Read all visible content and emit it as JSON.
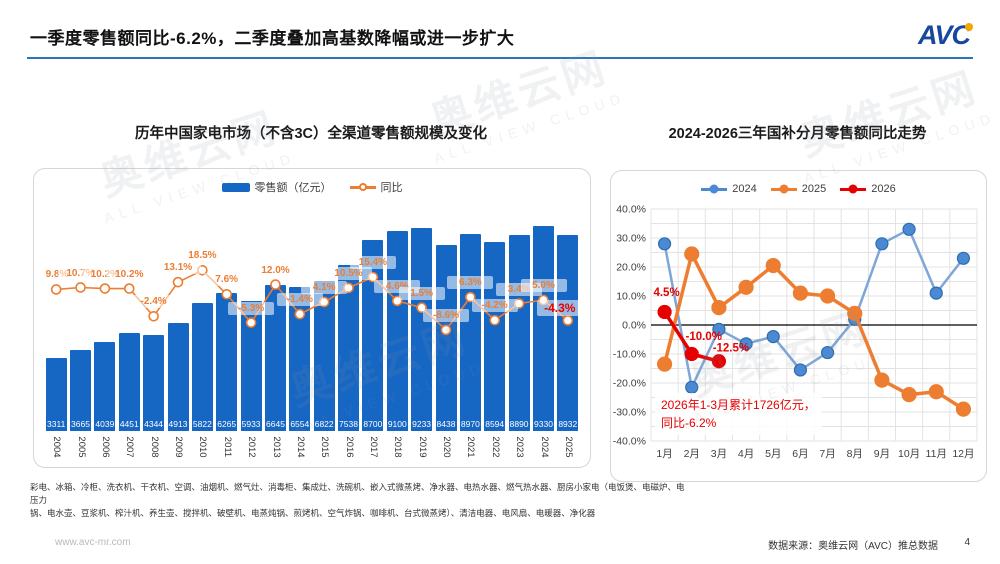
{
  "header": {
    "title": "一季度零售额同比-6.2%，二季度叠加高基数降幅或进一步扩大",
    "logo_text": "AVC"
  },
  "chart_data": [
    {
      "type": "bar",
      "title": "历年中国家电市场（不含3C）全渠道零售额规模及变化",
      "categories": [
        "2004",
        "2005",
        "2006",
        "2007",
        "2008",
        "2009",
        "2010",
        "2011",
        "2012",
        "2013",
        "2014",
        "2015",
        "2016",
        "2017",
        "2018",
        "2019",
        "2020",
        "2021",
        "2022",
        "2023",
        "2024",
        "2025"
      ],
      "series": [
        {
          "name": "零售额（亿元）",
          "type": "bar",
          "values": [
            3311,
            3665,
            4039,
            4451,
            4344,
            4913,
            5822,
            6265,
            5933,
            6645,
            6554,
            6822,
            7538,
            8700,
            9100,
            9233,
            8438,
            8970,
            8594,
            8890,
            9330,
            8932
          ]
        },
        {
          "name": "同比",
          "type": "line",
          "unit": "%",
          "values": [
            9.8,
            10.7,
            10.2,
            10.2,
            -2.4,
            13.1,
            18.5,
            7.6,
            -5.3,
            12.0,
            -1.4,
            4.1,
            10.5,
            15.4,
            4.6,
            1.5,
            -8.6,
            6.3,
            -4.2,
            3.4,
            5.0,
            -4.3
          ]
        }
      ],
      "highlight_last_index": 21,
      "legend_position": "top"
    },
    {
      "type": "line",
      "title": "2024-2026三年国补分月零售额同比走势",
      "categories": [
        "1月",
        "2月",
        "3月",
        "4月",
        "5月",
        "6月",
        "7月",
        "8月",
        "9月",
        "10月",
        "11月",
        "12月"
      ],
      "series": [
        {
          "name": "2024",
          "values": [
            28,
            -21.5,
            -1.5,
            -6.5,
            -4,
            -15.5,
            -9.5,
            2,
            28,
            33,
            11,
            23
          ]
        },
        {
          "name": "2025",
          "values": [
            -13.5,
            24.5,
            6,
            13,
            20.5,
            11,
            10,
            4,
            -19,
            -24,
            -23,
            -29
          ]
        },
        {
          "name": "2026",
          "values": [
            4.5,
            -10,
            -12.5
          ]
        }
      ],
      "ylim": [
        -40,
        40
      ],
      "ytick_step": 10,
      "grid_step": 5,
      "grid": true,
      "legend_position": "top",
      "point_labels": [
        "4.5%",
        "-10.0%",
        "-12.5%"
      ],
      "annotation": {
        "line1": "2026年1-3月累计1726亿元，",
        "line2": "同比-6.2%"
      }
    }
  ],
  "colors": {
    "bar": "#1666C4",
    "line_orange": "#ED7D31",
    "label_red": "#E60000",
    "s2024_line": "#7EA6D8",
    "s2024_marker": "#4A89D4",
    "s2024_marker_edge": "#2E6DA8",
    "s2025": "#ED7D31",
    "s2026": "#E60000",
    "grid": "#E3E3E3",
    "zero_line": "#000000",
    "header_rule": "#2E75B6",
    "logo_blue": "#17479E",
    "logo_dot": "#F7A600"
  },
  "footnote": {
    "line1": "彩电、冰箱、冷柜、洗衣机、干衣机、空调、油烟机、燃气灶、消毒柜、集成灶、洗碗机、嵌入式微蒸烤、净水器、电热水器、燃气热水器、厨房小家电（电饭煲、电磁炉、电压力",
    "line2": "锅、电水壶、豆浆机、榨汁机、养生壶、搅拌机、破壁机、电蒸炖锅、煎烤机、空气炸锅、咖啡机、台式微蒸烤）、清洁电器、电风扇、电暖器、净化器"
  },
  "footer": {
    "site": "www.avc-mr.com",
    "source": "数据来源：奥维云网（AVC）推总数据",
    "page": "4"
  },
  "watermark": {
    "name": "奥维云网",
    "sub": "ALL VIEW CLOUD"
  }
}
